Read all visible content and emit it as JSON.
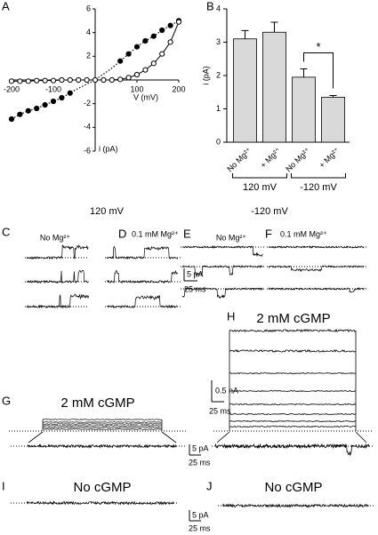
{
  "chart_data": [
    {
      "type": "line",
      "label": "A",
      "x_label": "V (mV)",
      "y_label": "i (pA)",
      "x": [
        -200,
        -180,
        -160,
        -140,
        -120,
        -100,
        -80,
        -60,
        -40,
        -20,
        0,
        20,
        40,
        60,
        80,
        100,
        120,
        140,
        160,
        180,
        200
      ],
      "series": [
        {
          "color": "#000000",
          "marker": "filled",
          "values": [
            -3.3,
            -2.9,
            -2.6,
            -2.4,
            -2.1,
            -1.8,
            -1.5,
            -1.1,
            -0.7,
            -0.35,
            0,
            0.5,
            1.0,
            1.6,
            2.2,
            2.8,
            3.3,
            3.7,
            4.2,
            4.6,
            5.0
          ]
        },
        {
          "color": "#000000",
          "marker": "open",
          "values": [
            -0.1,
            -0.1,
            -0.1,
            -0.05,
            -0.05,
            -0.05,
            0,
            0,
            0,
            0,
            0,
            0,
            0,
            0.05,
            0.2,
            0.45,
            0.85,
            1.4,
            2.2,
            3.2,
            4.9
          ]
        }
      ],
      "xlim": [
        -200,
        200
      ],
      "xticks": [
        -200,
        -100,
        100,
        200
      ],
      "ylim": [
        -6,
        6
      ],
      "yticks": [
        -6,
        -4,
        -2,
        2,
        4,
        6
      ]
    },
    {
      "type": "bar",
      "label": "B",
      "y_label": "i (pA)",
      "categories": [
        "No Mg²⁺",
        "+ Mg²⁺",
        "No Mg²⁺",
        "+ Mg²⁺"
      ],
      "values": [
        3.1,
        3.3,
        1.95,
        1.35
      ],
      "errors": [
        0.25,
        0.3,
        0.25,
        0.05
      ],
      "color": "#d9d9d9",
      "ylim": [
        0,
        4
      ],
      "yticks": [
        0,
        1,
        2,
        3,
        4
      ],
      "groups": [
        "120 mV",
        "-120 mV"
      ],
      "annotation": "*"
    }
  ],
  "traces": {
    "voltage_left": "120 mV",
    "voltage_right": "-120 mV",
    "C": {
      "letter": "C",
      "condition": "No Mg²⁺"
    },
    "D": {
      "letter": "D",
      "condition": "0.1 mM Mg²⁺"
    },
    "E": {
      "letter": "E",
      "condition": "No Mg²⁺"
    },
    "F": {
      "letter": "F",
      "condition": "0.1 mM Mg²⁺"
    },
    "G": {
      "letter": "G",
      "condition": "2 mM cGMP"
    },
    "H": {
      "letter": "H",
      "condition": "2 mM cGMP"
    },
    "I": {
      "letter": "I",
      "condition": "No cGMP"
    },
    "J": {
      "letter": "J",
      "condition": "No cGMP"
    },
    "scale_ce_current": "5 pA",
    "scale_ce_time": "25 ms",
    "scale_h_current": "0.5 nA",
    "scale_h_time": "25 ms",
    "scale_g_current": "5 pA",
    "scale_g_time": "25 ms",
    "scale_ij_current": "5 pA",
    "scale_ij_time": "25 ms"
  }
}
